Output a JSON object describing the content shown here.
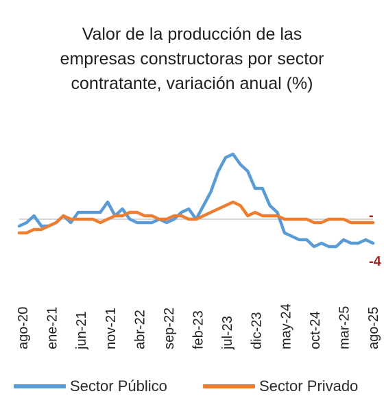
{
  "chart_data": {
    "type": "line",
    "title_lines": [
      "Valor de la producción de las",
      "empresas constructoras por sector",
      "contratante, variación anual (%)"
    ],
    "x_tick_labels": [
      "ago-20",
      "ene-21",
      "jun-21",
      "nov-21",
      "abr-22",
      "sep-22",
      "feb-23",
      "jul-23",
      "dic-23",
      "may-24",
      "oct-24",
      "mar-25",
      "ago-25"
    ],
    "right_annotations": [
      {
        "text": "-4",
        "color": "#b22222"
      },
      {
        "text": "-",
        "color": "#b22222"
      }
    ],
    "legend_position": "bottom",
    "grid": false,
    "y_reference": 0,
    "series": [
      {
        "name": "Sector Público",
        "color": "#5b9bd5",
        "values": [
          -2,
          -1,
          1,
          -2,
          -2,
          -1,
          1,
          -1,
          2,
          2,
          2,
          2,
          5,
          1,
          3,
          0,
          -1,
          -1,
          -1,
          0,
          -1,
          0,
          2,
          3,
          0,
          4,
          8,
          14,
          18,
          19,
          16,
          14,
          9,
          9,
          4,
          2,
          -4,
          -5,
          -6,
          -6,
          -8,
          -7,
          -8,
          -8,
          -6,
          -7,
          -7,
          -6,
          -7
        ]
      },
      {
        "name": "Sector Privado",
        "color": "#ed7d31",
        "values": [
          -4,
          -4,
          -3,
          -3,
          -2,
          -1,
          1,
          0,
          0,
          0,
          0,
          -1,
          0,
          1,
          1,
          2,
          2,
          1,
          1,
          0,
          0,
          1,
          1,
          0,
          0,
          1,
          2,
          3,
          4,
          5,
          4,
          1,
          2,
          1,
          1,
          1,
          0,
          0,
          0,
          0,
          -1,
          -1,
          0,
          0,
          0,
          -1,
          -1,
          -1,
          -1
        ]
      }
    ]
  }
}
